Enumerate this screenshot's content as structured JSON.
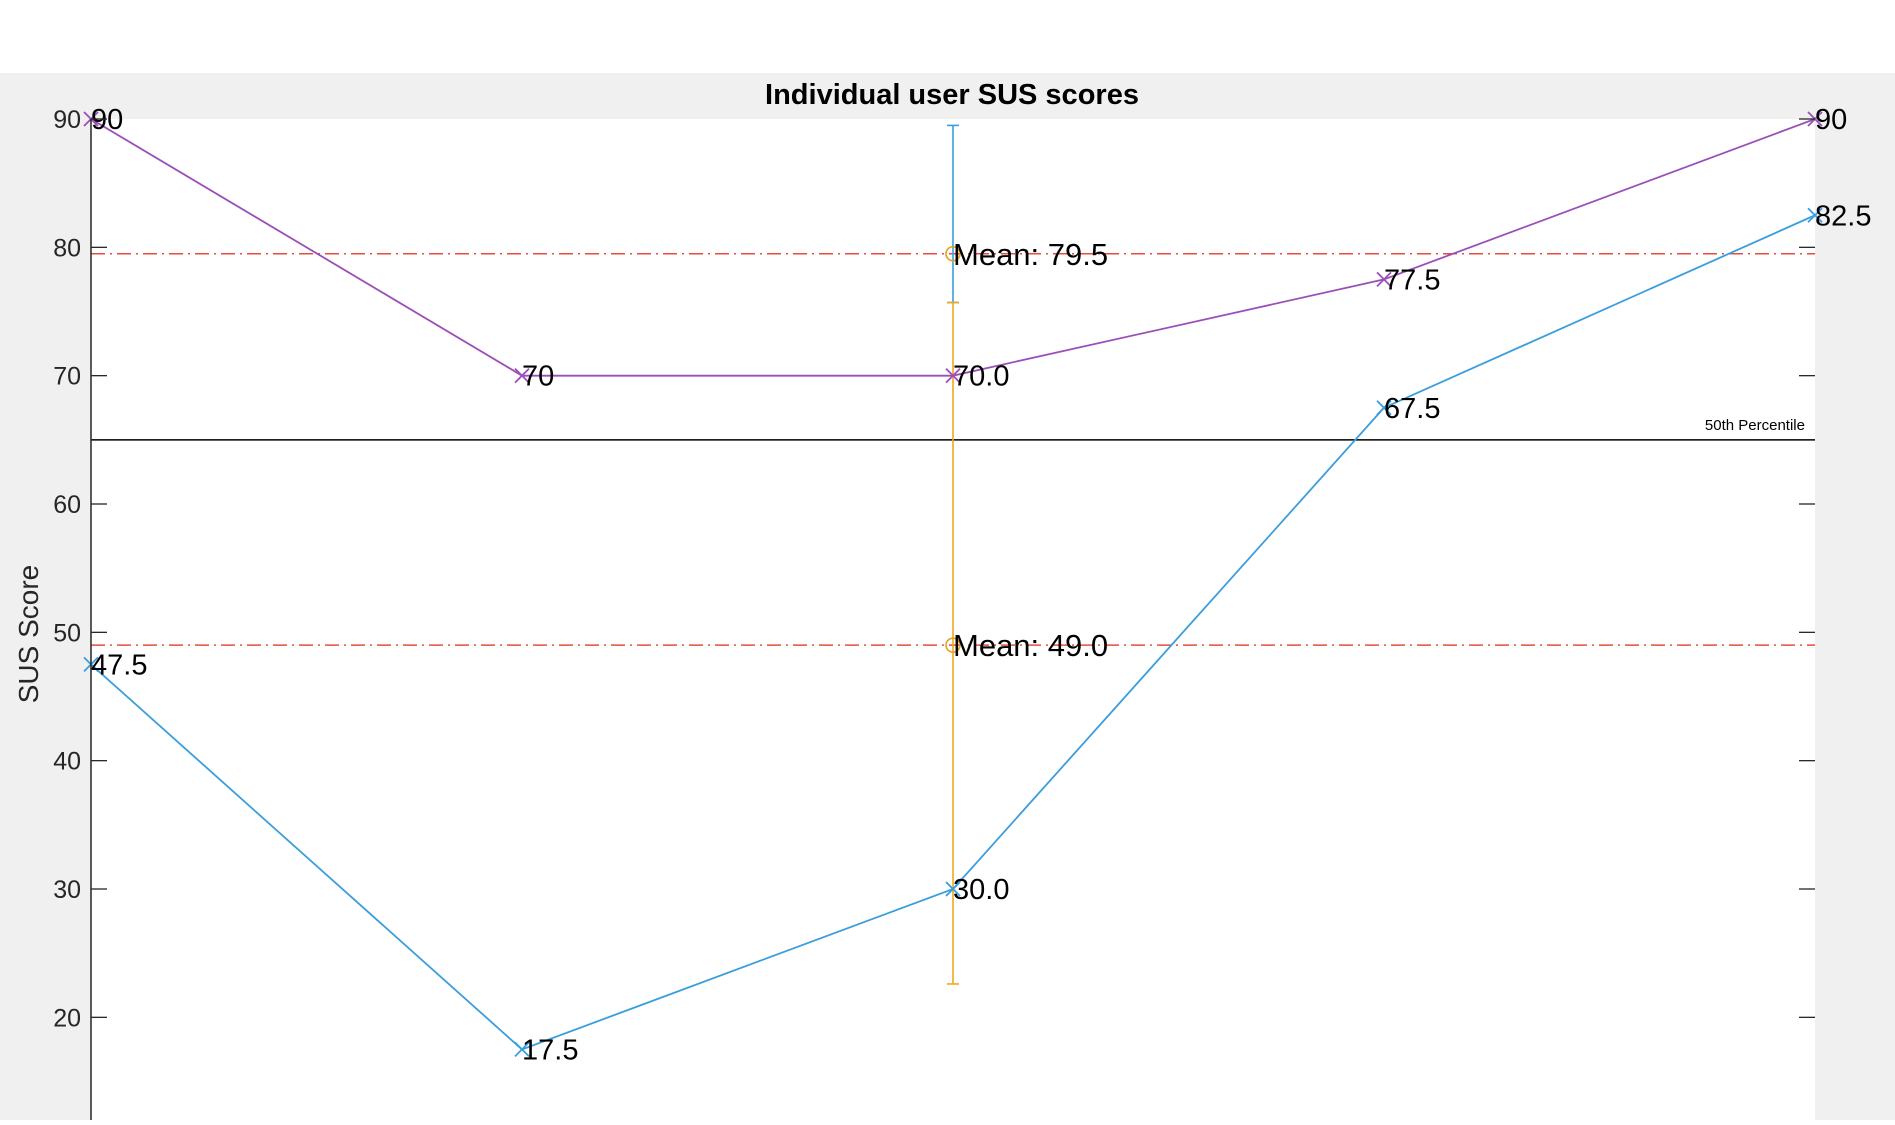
{
  "chart_data": {
    "type": "line",
    "title": "Individual user SUS scores",
    "ylabel": "SUS Score",
    "xlabel": "",
    "xlim": [
      1,
      5
    ],
    "ylim": [
      12,
      90
    ],
    "yticks": [
      20,
      30,
      40,
      50,
      60,
      70,
      80,
      90
    ],
    "grid": false,
    "series": [
      {
        "color": "#9b4fb8",
        "marker": "x",
        "x": [
          1,
          2,
          3,
          4,
          5
        ],
        "values": [
          90,
          70,
          70,
          77.5,
          90
        ],
        "labels": [
          "90",
          "70",
          "70.0",
          "77.5",
          "90"
        ]
      },
      {
        "color": "#3a9ede",
        "marker": "x",
        "x": [
          1,
          2,
          3,
          4,
          5
        ],
        "values": [
          47.5,
          17.5,
          30,
          67.5,
          82.5
        ],
        "labels": [
          "47.5",
          "17.5",
          "30.0",
          "67.5",
          "82.5"
        ]
      }
    ],
    "means": [
      {
        "value": 79.5,
        "label": "Mean: 79.5",
        "color": "#e74c3c",
        "marker_color": "#e6a020"
      },
      {
        "value": 49.0,
        "label": "Mean: 49.0",
        "color": "#e74c3c",
        "marker_color": "#e6a020"
      }
    ],
    "error_bars": [
      {
        "x": 3,
        "center": 79.5,
        "low": 75.7,
        "high": 89.5,
        "color": "#3a9ede"
      },
      {
        "x": 3,
        "center": 49.0,
        "low": 22.6,
        "high": 75.7,
        "color": "#f0a91c"
      }
    ],
    "reference_line": {
      "value": 65,
      "label": "50th Percentile",
      "color": "#000000"
    },
    "colors": {
      "figure_bg": "#f0f0f0",
      "axes_bg": "#ffffff",
      "axis": "#262626"
    }
  }
}
